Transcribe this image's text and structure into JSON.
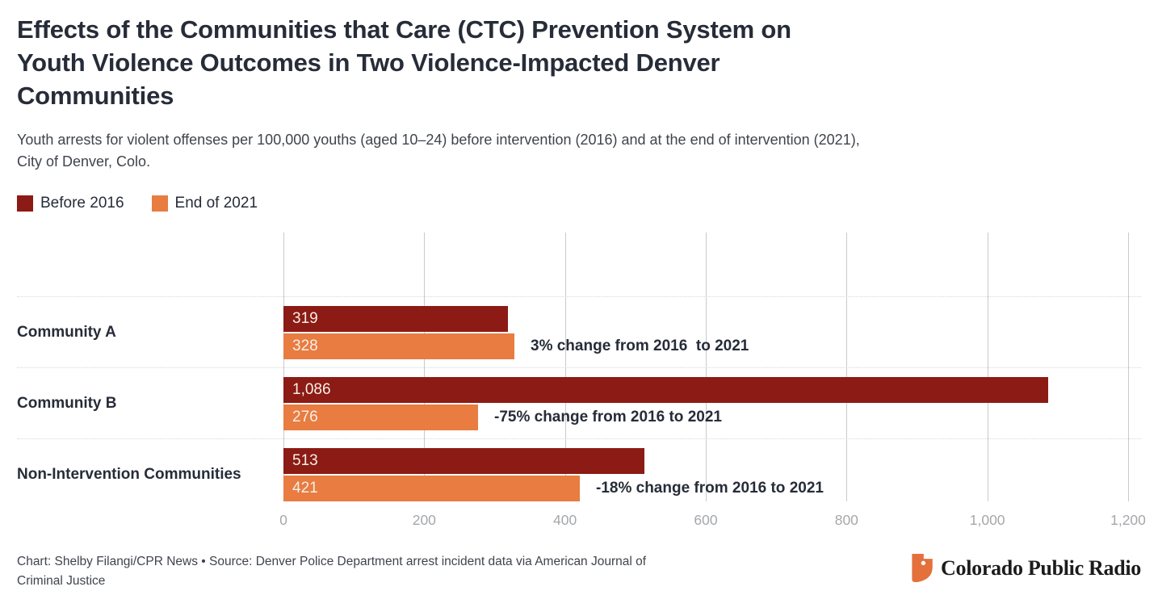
{
  "header": {
    "title_lines": [
      "Effects of the Communities that Care (CTC) Prevention System on",
      "Youth Violence Outcomes in Two Violence-Impacted Denver",
      "Communities"
    ],
    "subtitle_lines": [
      "Youth arrests for violent offenses per 100,000 youths (aged 10–24) before intervention (2016) and at the end of intervention (2021),",
      "City of Denver, Colo."
    ]
  },
  "legend": {
    "items": [
      {
        "label": "Before 2016",
        "color": "#8B1B14"
      },
      {
        "label": "End of 2021",
        "color": "#E87C41"
      }
    ]
  },
  "chart_data": {
    "type": "bar",
    "orientation": "horizontal",
    "title": "Effects of the Communities that Care (CTC) Prevention System on Youth Violence Outcomes in Two Violence-Impacted Denver Communities",
    "subtitle": "Youth arrests for violent offenses per 100,000 youths (aged 10–24) before intervention (2016) and at the end of intervention (2021), City of Denver, Colo.",
    "categories": [
      "Community A",
      "Community B",
      "Non-Intervention Communities"
    ],
    "series": [
      {
        "name": "Before 2016",
        "color": "#8B1B14",
        "values": [
          319,
          1086,
          513
        ],
        "value_labels": [
          "319",
          "1,086",
          "513"
        ]
      },
      {
        "name": "End of 2021",
        "color": "#E87C41",
        "values": [
          328,
          276,
          421
        ],
        "value_labels": [
          "328",
          "276",
          "421"
        ]
      }
    ],
    "annotations": [
      "3% change from 2016  to 2021",
      "-75% change from 2016 to 2021",
      "-18% change from 2016 to 2021"
    ],
    "x_ticks": [
      0,
      200,
      400,
      600,
      800,
      1000,
      1200
    ],
    "x_tick_labels": [
      "0",
      "200",
      "400",
      "600",
      "800",
      "1,000",
      "1,200"
    ],
    "xlim": [
      0,
      1200
    ],
    "xlabel": "",
    "ylabel": "",
    "grid": "vertical-solid-gridlines, dotted-horizontal-row-separators",
    "legend_position": "top-left"
  },
  "footer": {
    "credit_lines": [
      "Chart: Shelby Filangi/CPR News • Source: Denver Police Department arrest incident data via American Journal of",
      "Criminal Justice"
    ],
    "logo_text": "Colorado Public Radio"
  },
  "colors": {
    "dark_red": "#8B1B14",
    "orange": "#E87C41",
    "title_text": "#262C38",
    "body_text": "#3F444C",
    "axis_label": "#A5A7AA",
    "gridline": "#C9CACC",
    "separator": "#D5D6D8",
    "bar_value_text": "#F6EFE7",
    "logo_orange": "#E4703B",
    "logo_text": "#1C1C1C"
  }
}
